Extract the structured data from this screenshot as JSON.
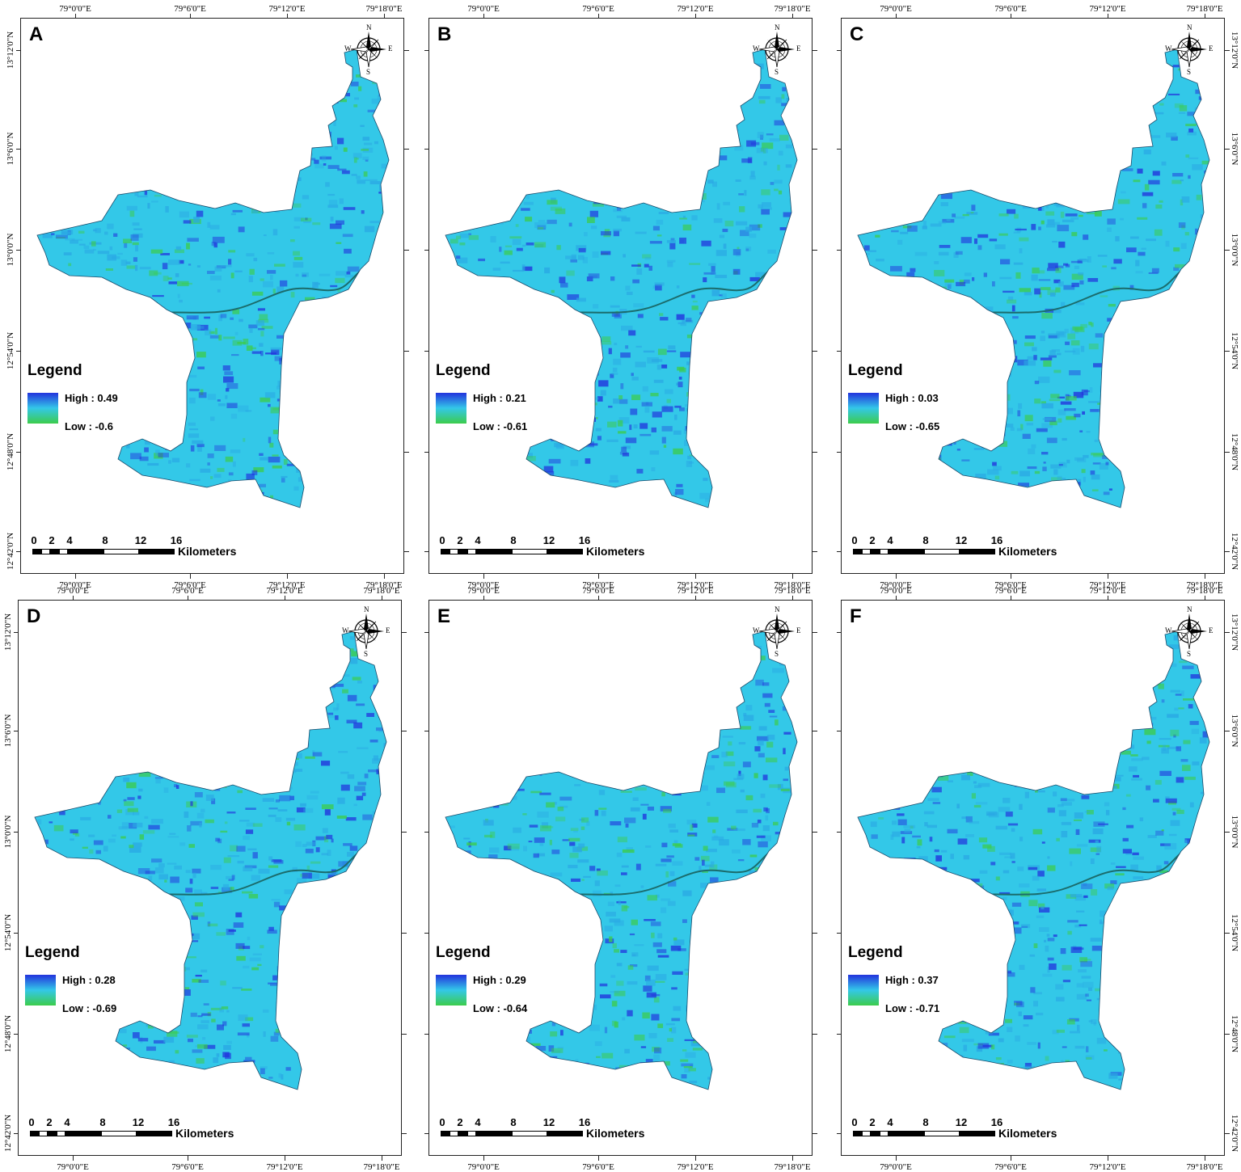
{
  "x_ticks": [
    "79°0'0\"E",
    "79°6'0\"E",
    "79°12'0\"E",
    "79°18'0\"E"
  ],
  "y_ticks": [
    "13°12'0\"N",
    "13°6'0\"N",
    "13°0'0\"N",
    "12°54'0\"N",
    "12°48'0\"N",
    "12°42'0\"N"
  ],
  "compass": {
    "n": "N",
    "s": "S",
    "e": "E",
    "w": "W"
  },
  "legend_title": "Legend",
  "scalebar": {
    "ticks": [
      "0",
      "2",
      "4",
      "8",
      "12",
      "16"
    ],
    "unit": "Kilometers"
  },
  "colors": {
    "high": "#2233dd",
    "mid": "#33c8e8",
    "low": "#3ccc4c",
    "frame": "#222222"
  },
  "panels": [
    {
      "label": "A",
      "high": "High : 0.49",
      "low": "Low : -0.6",
      "blue_share": 0.3,
      "green_share": 0.25
    },
    {
      "label": "B",
      "high": "High : 0.21",
      "low": "Low : -0.61",
      "blue_share": 0.35,
      "green_share": 0.2
    },
    {
      "label": "C",
      "high": "High : 0.03",
      "low": "Low : -0.65",
      "blue_share": 0.35,
      "green_share": 0.25
    },
    {
      "label": "D",
      "high": "High : 0.28",
      "low": "Low : -0.69",
      "blue_share": 0.38,
      "green_share": 0.25
    },
    {
      "label": "E",
      "high": "High : 0.29",
      "low": "Low : -0.64",
      "blue_share": 0.3,
      "green_share": 0.28
    },
    {
      "label": "F",
      "high": "High : 0.37",
      "low": "Low : -0.71",
      "blue_share": 0.25,
      "green_share": 0.22
    }
  ]
}
